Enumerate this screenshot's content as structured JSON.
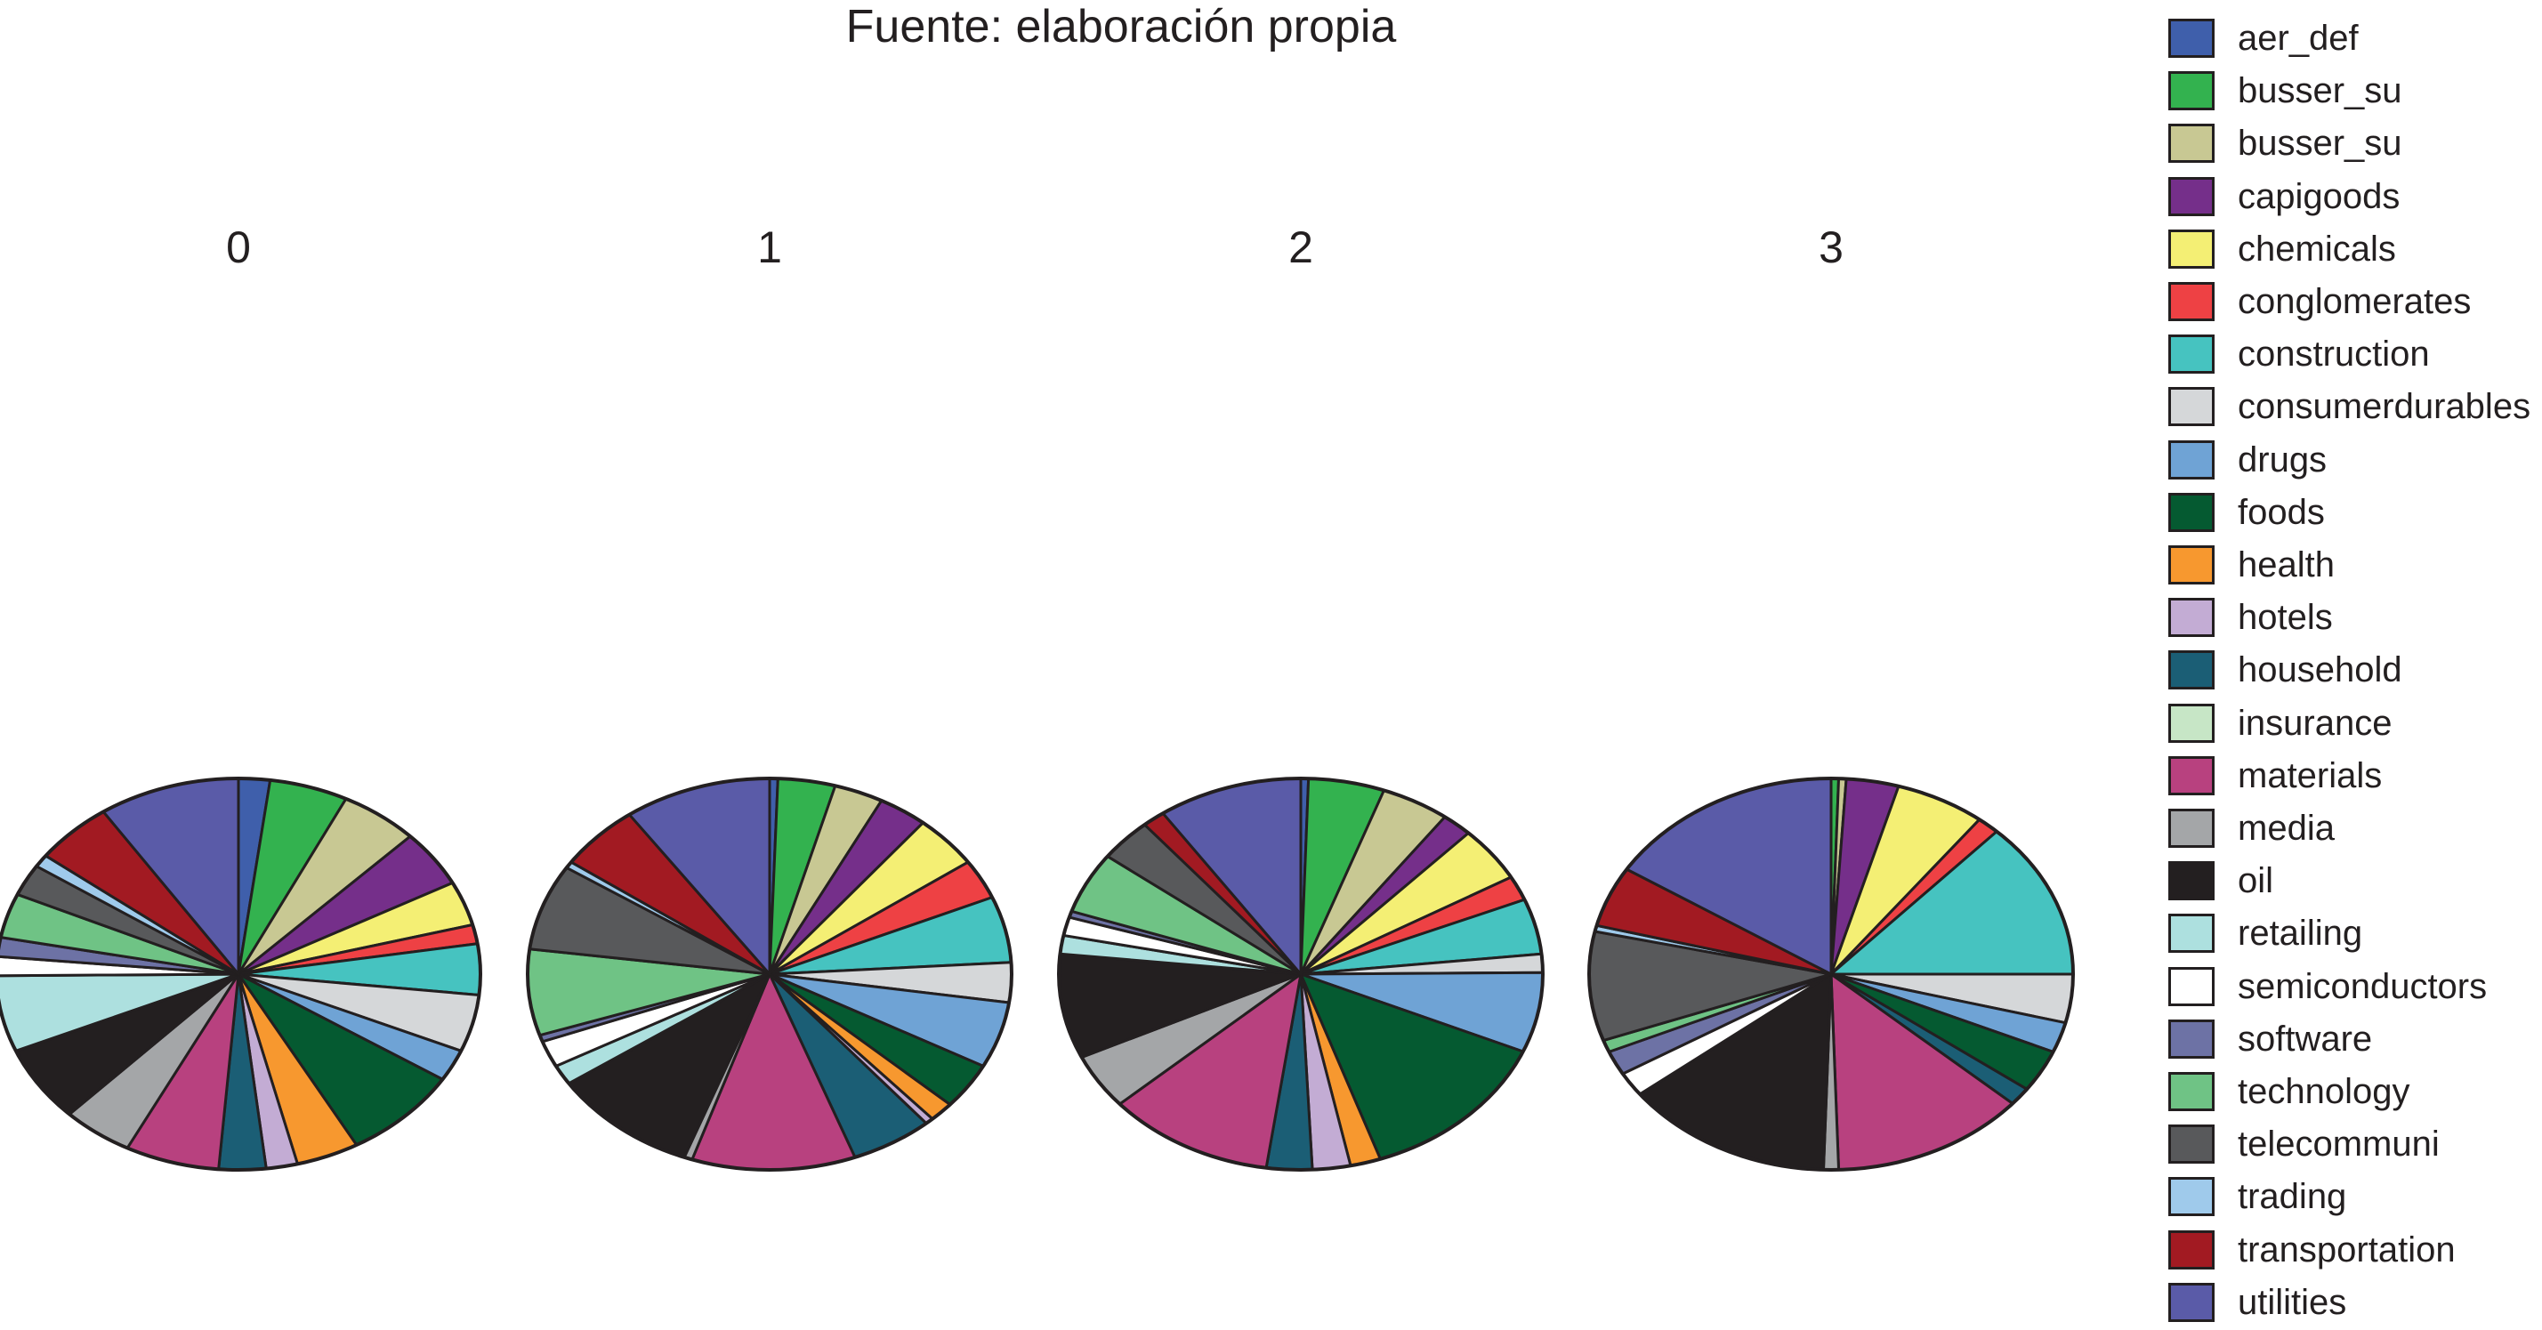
{
  "title": "Fuente: elaboración propia",
  "legend": {
    "placement": "right",
    "items": [
      {
        "label": "aer_def",
        "color": "#3f5fab"
      },
      {
        "label": "busser_su",
        "color": "#33b24f"
      },
      {
        "label": "busser_su",
        "color": "#c8c893"
      },
      {
        "label": "capigoods",
        "color": "#752f8a"
      },
      {
        "label": "chemicals",
        "color": "#f4ef74"
      },
      {
        "label": "conglomerates",
        "color": "#ee4144"
      },
      {
        "label": "construction",
        "color": "#46c3c0"
      },
      {
        "label": "consumerdurables",
        "color": "#d5d7d9"
      },
      {
        "label": "drugs",
        "color": "#6fa3d5"
      },
      {
        "label": "foods",
        "color": "#055a31"
      },
      {
        "label": "health",
        "color": "#f7982f"
      },
      {
        "label": "hotels",
        "color": "#c3acd4"
      },
      {
        "label": "household",
        "color": "#1b5e75"
      },
      {
        "label": "insurance",
        "color": "#c7e6c6"
      },
      {
        "label": "materials",
        "color": "#b8417f"
      },
      {
        "label": "media",
        "color": "#a4a6a8"
      },
      {
        "label": "oil",
        "color": "#231f20"
      },
      {
        "label": "retailing",
        "color": "#ade0df"
      },
      {
        "label": "semiconductors",
        "color": "#ffffff"
      },
      {
        "label": "software",
        "color": "#6d72a5"
      },
      {
        "label": "technology",
        "color": "#6fc385"
      },
      {
        "label": "telecommuni",
        "color": "#58595b"
      },
      {
        "label": "trading",
        "color": "#9fcaeb"
      },
      {
        "label": "transportation",
        "color": "#a21a22"
      },
      {
        "label": "utilities",
        "color": "#5a5ba8"
      }
    ]
  },
  "chart_data": [
    {
      "type": "pie",
      "title": "0",
      "categories_ref": "legend.items",
      "values": [
        2.0,
        5.0,
        5.0,
        4.5,
        3.5,
        1.5,
        4.0,
        4.5,
        2.5,
        7.5,
        4.0,
        2.0,
        3.0,
        0.0,
        6.0,
        4.5,
        6.0,
        6.0,
        1.5,
        1.5,
        3.5,
        2.5,
        1.0,
        5.0,
        9.0
      ]
    },
    {
      "type": "pie",
      "title": "1",
      "categories_ref": "legend.items",
      "values": [
        0.5,
        3.5,
        3.0,
        3.0,
        4.0,
        3.0,
        5.0,
        3.0,
        5.0,
        3.5,
        1.5,
        0.5,
        5.0,
        0.0,
        10.0,
        0.5,
        9.0,
        1.5,
        2.0,
        0.5,
        6.5,
        6.5,
        0.5,
        5.0,
        9.0
      ]
    },
    {
      "type": "pie",
      "title": "2",
      "categories_ref": "legend.items",
      "values": [
        0.5,
        5.0,
        4.5,
        2.0,
        4.5,
        2.0,
        4.5,
        1.5,
        6.5,
        13.0,
        2.0,
        2.5,
        3.0,
        0.0,
        11.0,
        4.5,
        8.5,
        1.5,
        1.5,
        0.5,
        5.0,
        3.5,
        0.0,
        1.5,
        9.5
      ]
    },
    {
      "type": "pie",
      "title": "3",
      "categories_ref": "legend.items",
      "values": [
        0.0,
        0.5,
        0.5,
        3.5,
        6.0,
        1.5,
        13.0,
        4.0,
        2.5,
        3.5,
        0.0,
        0.0,
        1.5,
        0.0,
        13.0,
        1.0,
        14.0,
        0.0,
        2.0,
        2.0,
        1.0,
        9.0,
        0.5,
        5.0,
        16.0
      ]
    }
  ]
}
